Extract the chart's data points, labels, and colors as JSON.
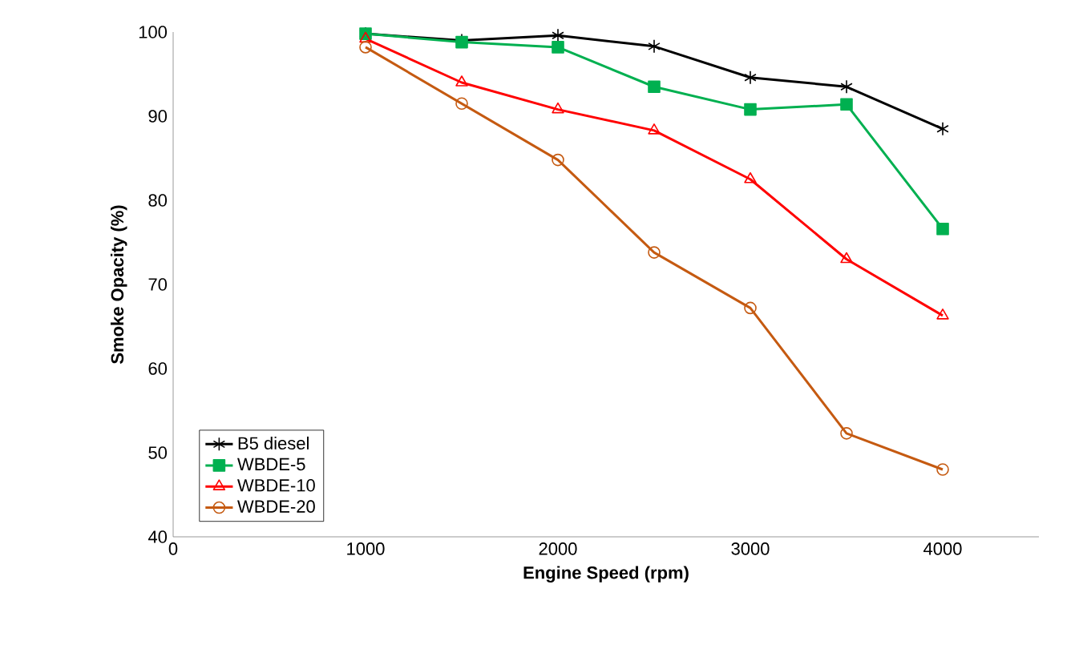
{
  "chart_data": {
    "type": "line",
    "xlabel": "Engine Speed (rpm)",
    "ylabel": "Smoke Opacity (%)",
    "x": [
      1000,
      1500,
      2000,
      2500,
      3000,
      3500,
      4000
    ],
    "series": [
      {
        "name": "B5 diesel",
        "color": "#000000",
        "marker": "cross",
        "values": [
          99.8,
          99,
          99.6,
          98.3,
          94.6,
          93.5,
          88.5
        ]
      },
      {
        "name": "WBDE-5",
        "color": "#00b050",
        "marker": "square",
        "values": [
          99.8,
          98.8,
          98.2,
          93.5,
          90.8,
          91.4,
          76.6
        ]
      },
      {
        "name": "WBDE-10",
        "color": "#ff0000",
        "marker": "triangle",
        "values": [
          99.2,
          94,
          90.8,
          88.3,
          82.5,
          73,
          66.3
        ]
      },
      {
        "name": "WBDE-20",
        "color": "#c55a11",
        "marker": "circle",
        "values": [
          98.2,
          91.5,
          84.8,
          73.8,
          67.2,
          52.3,
          48
        ]
      }
    ],
    "xlim": [
      0,
      4500
    ],
    "xticks": [
      0,
      1000,
      2000,
      3000,
      4000
    ],
    "ylim": [
      40,
      100
    ],
    "yticks": [
      40,
      50,
      60,
      70,
      80,
      90,
      100
    ],
    "grid": false,
    "legend": "bottom left",
    "line_style": "solid"
  }
}
